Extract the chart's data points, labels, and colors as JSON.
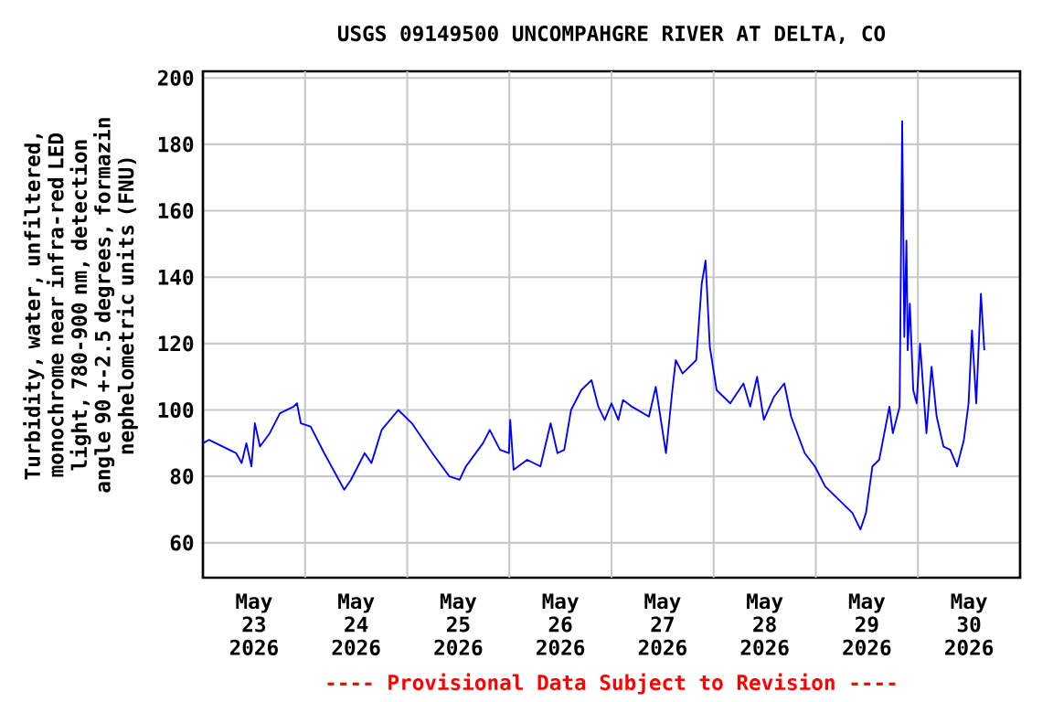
{
  "chart_data": {
    "type": "line",
    "title": "USGS 09149500 UNCOMPAHGRE RIVER AT DELTA, CO",
    "ylabel": "Turbidity, water, unfiltered, monochrome near infra-red LED light, 780-900 nm, detection angle 90 +-2.5 degrees, formazin nephelometric units (FNU)",
    "annotations": [
      "---- Provisional Data Subject to Revision ----"
    ],
    "color": "#0000ff",
    "grid": true,
    "xlim": [
      "2026-05-23T00:00",
      "2026-05-31T00:00"
    ],
    "ylim": [
      49.5,
      202
    ],
    "yticks": [
      60,
      80,
      100,
      120,
      140,
      160,
      180,
      200
    ],
    "xticks": [
      {
        "value": "2026-05-23T12:00",
        "label": "May 23 2026"
      },
      {
        "value": "2026-05-24T12:00",
        "label": "May 24 2026"
      },
      {
        "value": "2026-05-25T12:00",
        "label": "May 25 2026"
      },
      {
        "value": "2026-05-26T12:00",
        "label": "May 26 2026"
      },
      {
        "value": "2026-05-27T12:00",
        "label": "May 27 2026"
      },
      {
        "value": "2026-05-28T12:00",
        "label": "May 28 2026"
      },
      {
        "value": "2026-05-29T12:00",
        "label": "May 29 2026"
      },
      {
        "value": "2026-05-30T12:00",
        "label": "May 30 2026"
      },
      {
        "value": "2026-05-24T00:00",
        "label": null
      },
      {
        "value": "2026-05-25T00:00",
        "label": null
      },
      {
        "value": "2026-05-26T00:00",
        "label": null
      },
      {
        "value": "2026-05-27T00:00",
        "label": null
      },
      {
        "value": "2026-05-28T00:00",
        "label": null
      },
      {
        "value": "2026-05-29T00:00",
        "label": null
      },
      {
        "value": "2026-05-30T00:00",
        "label": null
      }
    ],
    "x": [
      "2026-05-23T00:00",
      "2026-05-23T01:24",
      "2026-05-23T04:36",
      "2026-05-23T07:48",
      "2026-05-23T09:06",
      "2026-05-23T10:12",
      "2026-05-23T11:24",
      "2026-05-23T12:12",
      "2026-05-23T13:24",
      "2026-05-23T15:42",
      "2026-05-23T18:06",
      "2026-05-23T21:18",
      "2026-05-23T22:06",
      "2026-05-23T23:00",
      "2026-05-24T01:18",
      "2026-05-24T04:30",
      "2026-05-24T09:12",
      "2026-05-24T10:48",
      "2026-05-24T14:00",
      "2026-05-24T15:36",
      "2026-05-24T18:00",
      "2026-05-24T21:54",
      "2026-05-25T01:06",
      "2026-05-25T05:54",
      "2026-05-25T09:54",
      "2026-05-25T12:18",
      "2026-05-25T13:48",
      "2026-05-25T17:48",
      "2026-05-25T19:24",
      "2026-05-25T21:48",
      "2026-05-25T23:54",
      "2026-05-26T00:12",
      "2026-05-26T01:00",
      "2026-05-26T04:12",
      "2026-05-26T07:18",
      "2026-05-26T09:42",
      "2026-05-26T11:18",
      "2026-05-26T12:54",
      "2026-05-26T14:30",
      "2026-05-26T16:54",
      "2026-05-26T19:18",
      "2026-05-26T20:54",
      "2026-05-26T22:24",
      "2026-05-27T00:00",
      "2026-05-27T01:36",
      "2026-05-27T02:42",
      "2026-05-27T04:48",
      "2026-05-27T08:48",
      "2026-05-27T10:24",
      "2026-05-27T12:48",
      "2026-05-27T14:18",
      "2026-05-27T15:06",
      "2026-05-27T16:42",
      "2026-05-27T18:18",
      "2026-05-27T19:54",
      "2026-05-27T21:12",
      "2026-05-27T22:06",
      "2026-05-27T23:06",
      "2026-05-28T00:42",
      "2026-05-28T03:54",
      "2026-05-28T07:00",
      "2026-05-28T08:36",
      "2026-05-28T10:12",
      "2026-05-28T11:48",
      "2026-05-28T14:12",
      "2026-05-28T16:36",
      "2026-05-28T18:12",
      "2026-05-28T21:24",
      "2026-05-28T23:48",
      "2026-05-29T02:12",
      "2026-05-29T05:24",
      "2026-05-29T08:36",
      "2026-05-29T10:30",
      "2026-05-29T11:48",
      "2026-05-29T13:18",
      "2026-05-29T14:54",
      "2026-05-29T17:18",
      "2026-05-29T18:06",
      "2026-05-29T19:42",
      "2026-05-29T20:18",
      "2026-05-29T20:48",
      "2026-05-29T21:18",
      "2026-05-29T21:36",
      "2026-05-29T22:06",
      "2026-05-29T22:54",
      "2026-05-29T23:42",
      "2026-05-30T00:30",
      "2026-05-30T02:00",
      "2026-05-30T03:12",
      "2026-05-30T04:24",
      "2026-05-30T06:00",
      "2026-05-30T07:36",
      "2026-05-30T09:12",
      "2026-05-30T10:48",
      "2026-05-30T11:54",
      "2026-05-30T12:42",
      "2026-05-30T13:42",
      "2026-05-30T14:48",
      "2026-05-30T15:36"
    ],
    "values": [
      90,
      91,
      89,
      87,
      84,
      90,
      83,
      96,
      89,
      93,
      99,
      101,
      102,
      96,
      95,
      87,
      76,
      79,
      87,
      84,
      94,
      100,
      96,
      87,
      80,
      79,
      83,
      90,
      94,
      88,
      87,
      97,
      82,
      85,
      83,
      96,
      87,
      88,
      100,
      106,
      109,
      101,
      97,
      102,
      97,
      103,
      101,
      98,
      107,
      87,
      106,
      115,
      111,
      113,
      115,
      138,
      145,
      119,
      106,
      102,
      108,
      101,
      110,
      97,
      104,
      108,
      98,
      87,
      83,
      77,
      73,
      69,
      64,
      69,
      83,
      85,
      101,
      93,
      101,
      187,
      122,
      151,
      118,
      132,
      106,
      102,
      120,
      93,
      113,
      98,
      89,
      88,
      83,
      91,
      102,
      124,
      102,
      135,
      118
    ]
  }
}
